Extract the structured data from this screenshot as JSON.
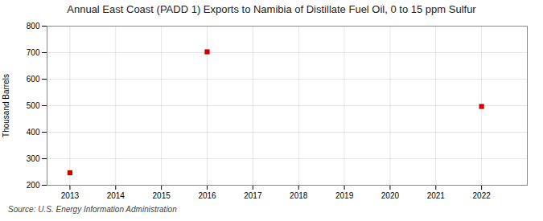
{
  "chart_data": {
    "type": "scatter",
    "title": "Annual East Coast (PADD 1) Exports to Namibia of Distillate Fuel Oil, 0 to 15 ppm Sulfur",
    "ylabel": "Thousand Barrels",
    "annotation": "Source: U.S. Energy Information Administration",
    "x": [
      2013,
      2016,
      2022
    ],
    "values": [
      247,
      703,
      497
    ],
    "color": "#cc0000",
    "marker": "square",
    "xlim": [
      2012.5,
      2023.0
    ],
    "ylim": [
      200,
      800
    ],
    "xticks": [
      2013,
      2014,
      2015,
      2016,
      2017,
      2018,
      2019,
      2020,
      2021,
      2022
    ],
    "yticks": [
      200,
      300,
      400,
      500,
      600,
      700,
      800
    ],
    "grid": true
  }
}
